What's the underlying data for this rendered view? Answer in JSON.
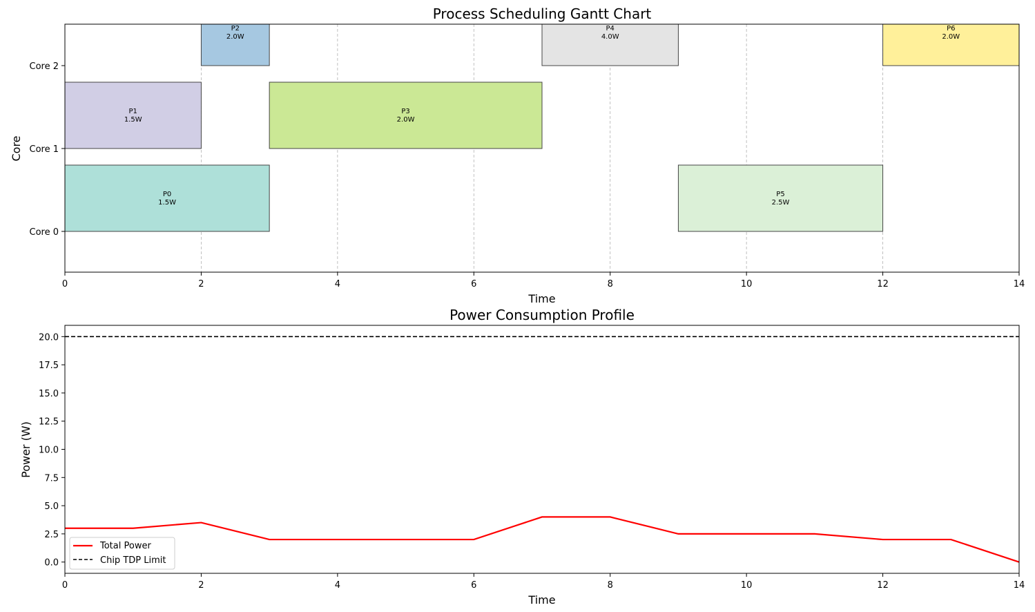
{
  "chart_data": [
    {
      "type": "gantt",
      "title": "Process Scheduling Gantt Chart",
      "xlabel": "Time",
      "ylabel": "Core",
      "xlim": [
        0,
        14
      ],
      "xticks": [
        0,
        2,
        4,
        6,
        8,
        10,
        12,
        14
      ],
      "cores": [
        "Core 0",
        "Core 1",
        "Core 2"
      ],
      "grid": "vertical dashed",
      "tasks": [
        {
          "name": "P0",
          "power_label": "1.5W",
          "core": 0,
          "start": 0,
          "end": 3,
          "color": "#aee0d9"
        },
        {
          "name": "P1",
          "power_label": "1.5W",
          "core": 1,
          "start": 0,
          "end": 2,
          "color": "#d1cee5"
        },
        {
          "name": "P2",
          "power_label": "2.0W",
          "core": 2,
          "start": 2,
          "end": 3,
          "color": "#a6c8e1"
        },
        {
          "name": "P3",
          "power_label": "2.0W",
          "core": 1,
          "start": 3,
          "end": 7,
          "color": "#cbe895"
        },
        {
          "name": "P4",
          "power_label": "4.0W",
          "core": 2,
          "start": 7,
          "end": 9,
          "color": "#e4e4e4"
        },
        {
          "name": "P5",
          "power_label": "2.5W",
          "core": 0,
          "start": 9,
          "end": 12,
          "color": "#dbf0d7"
        },
        {
          "name": "P6",
          "power_label": "2.0W",
          "core": 2,
          "start": 12,
          "end": 14,
          "color": "#fff09a"
        }
      ]
    },
    {
      "type": "line",
      "title": "Power Consumption Profile",
      "xlabel": "Time",
      "ylabel": "Power (W)",
      "xlim": [
        0,
        14
      ],
      "ylim": [
        -1,
        21
      ],
      "xticks": [
        0,
        2,
        4,
        6,
        8,
        10,
        12,
        14
      ],
      "yticks": [
        0.0,
        2.5,
        5.0,
        7.5,
        10.0,
        12.5,
        15.0,
        17.5,
        20.0
      ],
      "ytick_labels": [
        "0.0",
        "2.5",
        "5.0",
        "7.5",
        "10.0",
        "12.5",
        "15.0",
        "17.5",
        "20.0"
      ],
      "legend_position": "lower-left",
      "series": [
        {
          "name": "Total Power",
          "color": "#ff0000",
          "style": "solid",
          "x": [
            0,
            1,
            2,
            3,
            4,
            5,
            6,
            7,
            8,
            9,
            10,
            11,
            12,
            13,
            14
          ],
          "y": [
            3.0,
            3.0,
            3.5,
            2.0,
            2.0,
            2.0,
            2.0,
            4.0,
            4.0,
            2.5,
            2.5,
            2.5,
            2.0,
            2.0,
            0.0
          ]
        },
        {
          "name": "Chip TDP Limit",
          "color": "#000000",
          "style": "dashed",
          "x": [
            0,
            14
          ],
          "y": [
            20.0,
            20.0
          ]
        }
      ]
    }
  ]
}
